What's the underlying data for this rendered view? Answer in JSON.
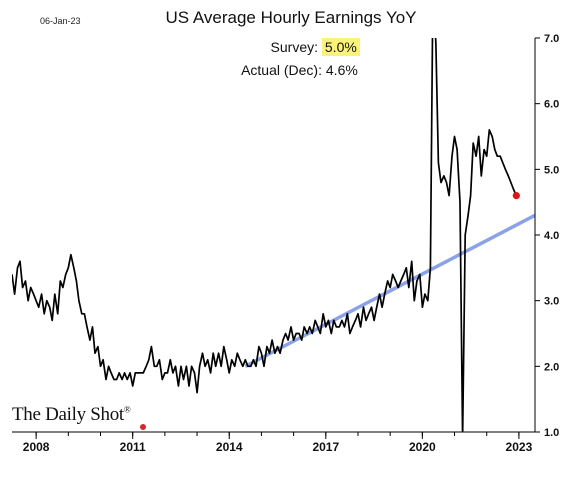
{
  "date_stamp": "06-Jan-23",
  "brand": {
    "name": "The Daily Shot",
    "mark": "®"
  },
  "annotation": {
    "survey_label": "Survey:",
    "survey_value": "5.0%",
    "actual_label": "Actual (Dec):",
    "actual_value": "4.6%"
  },
  "colors": {
    "line": "#000000",
    "trend": "#8aa2e6",
    "last_point": "#e01515",
    "highlight": "#fbf27a",
    "brand_dot": "#d12a2a"
  },
  "chart_data": {
    "type": "line",
    "title": "US Average Hourly Earnings YoY",
    "xlabel": "",
    "ylabel": "",
    "xlim": [
      2007.25,
      2023.5
    ],
    "ylim": [
      1.0,
      7.0
    ],
    "x_ticks": [
      "2008",
      "2011",
      "2014",
      "2017",
      "2020",
      "2023"
    ],
    "y_ticks": [
      "1.0",
      "2.0",
      "3.0",
      "4.0",
      "5.0",
      "6.0",
      "7.0"
    ],
    "y_axis_side": "right",
    "grid": false,
    "legend": "none",
    "series": [
      {
        "x": [
          2007.25,
          2007.33,
          2007.42,
          2007.5,
          2007.58,
          2007.67,
          2007.75,
          2007.83,
          2007.92,
          2008.0,
          2008.08,
          2008.17,
          2008.25,
          2008.33,
          2008.42,
          2008.5,
          2008.58,
          2008.67,
          2008.75,
          2008.83,
          2008.92,
          2009.0,
          2009.08,
          2009.17,
          2009.25,
          2009.33,
          2009.42,
          2009.5,
          2009.58,
          2009.67,
          2009.75,
          2009.83,
          2009.92,
          2010.0,
          2010.08,
          2010.17,
          2010.25,
          2010.33,
          2010.42,
          2010.5,
          2010.58,
          2010.67,
          2010.75,
          2010.83,
          2010.92,
          2011.0,
          2011.08,
          2011.17,
          2011.25,
          2011.33,
          2011.42,
          2011.5,
          2011.58,
          2011.67,
          2011.75,
          2011.83,
          2011.92,
          2012.0,
          2012.08,
          2012.17,
          2012.25,
          2012.33,
          2012.42,
          2012.5,
          2012.58,
          2012.67,
          2012.75,
          2012.83,
          2012.92,
          2013.0,
          2013.08,
          2013.17,
          2013.25,
          2013.33,
          2013.42,
          2013.5,
          2013.58,
          2013.67,
          2013.75,
          2013.83,
          2013.92,
          2014.0,
          2014.08,
          2014.17,
          2014.25,
          2014.33,
          2014.42,
          2014.5,
          2014.58,
          2014.67,
          2014.75,
          2014.83,
          2014.92,
          2015.0,
          2015.08,
          2015.17,
          2015.25,
          2015.33,
          2015.42,
          2015.5,
          2015.58,
          2015.67,
          2015.75,
          2015.83,
          2015.92,
          2016.0,
          2016.08,
          2016.17,
          2016.25,
          2016.33,
          2016.42,
          2016.5,
          2016.58,
          2016.67,
          2016.75,
          2016.83,
          2016.92,
          2017.0,
          2017.08,
          2017.17,
          2017.25,
          2017.33,
          2017.42,
          2017.5,
          2017.58,
          2017.67,
          2017.75,
          2017.83,
          2017.92,
          2018.0,
          2018.08,
          2018.17,
          2018.25,
          2018.33,
          2018.42,
          2018.5,
          2018.58,
          2018.67,
          2018.75,
          2018.83,
          2018.92,
          2019.0,
          2019.08,
          2019.17,
          2019.25,
          2019.33,
          2019.42,
          2019.5,
          2019.58,
          2019.67,
          2019.75,
          2019.83,
          2019.92,
          2020.0,
          2020.08,
          2020.17,
          2020.25,
          2020.33,
          2020.42,
          2020.5,
          2020.58,
          2020.67,
          2020.75,
          2020.83,
          2020.92,
          2021.0,
          2021.08,
          2021.17,
          2021.25,
          2021.33,
          2021.42,
          2021.5,
          2021.58,
          2021.67,
          2021.75,
          2021.83,
          2021.92,
          2022.0,
          2022.08,
          2022.17,
          2022.25,
          2022.33,
          2022.42,
          2022.5,
          2022.58,
          2022.67,
          2022.75,
          2022.83,
          2022.92
        ],
        "values": [
          3.4,
          3.1,
          3.5,
          3.6,
          3.2,
          3.3,
          3.0,
          3.2,
          3.1,
          3.0,
          2.9,
          3.1,
          2.8,
          3.0,
          2.9,
          2.7,
          3.1,
          2.8,
          3.3,
          3.2,
          3.4,
          3.5,
          3.7,
          3.5,
          3.3,
          3.0,
          2.8,
          2.8,
          2.6,
          2.4,
          2.6,
          2.2,
          2.3,
          2.0,
          2.1,
          1.8,
          2.0,
          1.9,
          1.8,
          1.8,
          1.9,
          1.8,
          1.9,
          1.8,
          1.9,
          1.7,
          1.9,
          1.9,
          1.9,
          1.9,
          2.0,
          2.1,
          2.3,
          2.0,
          2.0,
          2.1,
          1.8,
          1.9,
          1.9,
          2.1,
          1.9,
          2.0,
          1.7,
          2.0,
          1.8,
          2.0,
          1.7,
          2.0,
          1.9,
          1.6,
          2.0,
          2.2,
          2.0,
          2.1,
          1.9,
          2.2,
          2.0,
          2.2,
          2.0,
          2.3,
          2.1,
          1.9,
          2.1,
          2.0,
          2.2,
          2.1,
          2.0,
          2.1,
          2.0,
          2.0,
          2.1,
          2.0,
          2.3,
          2.2,
          2.0,
          2.3,
          2.2,
          2.4,
          2.2,
          2.3,
          2.2,
          2.4,
          2.5,
          2.4,
          2.6,
          2.4,
          2.5,
          2.5,
          2.4,
          2.6,
          2.5,
          2.6,
          2.5,
          2.7,
          2.6,
          2.5,
          2.8,
          2.6,
          2.7,
          2.5,
          2.7,
          2.6,
          2.6,
          2.7,
          2.6,
          2.8,
          2.5,
          2.6,
          2.7,
          2.8,
          2.6,
          2.9,
          2.7,
          2.8,
          2.9,
          2.7,
          2.9,
          3.1,
          2.9,
          3.1,
          3.3,
          3.2,
          3.4,
          3.3,
          3.2,
          3.3,
          3.4,
          3.5,
          3.2,
          3.6,
          3.0,
          3.3,
          3.4,
          2.9,
          3.1,
          3.0,
          3.5,
          7.9,
          6.9,
          5.1,
          4.8,
          4.9,
          4.8,
          4.6,
          5.2,
          5.5,
          5.3,
          4.5,
          0.9,
          4.0,
          4.3,
          4.6,
          5.4,
          5.2,
          5.5,
          4.9,
          5.3,
          5.2,
          5.6,
          5.5,
          5.3,
          5.2,
          5.2,
          5.1,
          5.0,
          4.9,
          4.8,
          4.7,
          4.6
        ]
      }
    ],
    "trend": {
      "x": [
        2014.5,
        2023.5
      ],
      "y": [
        2.0,
        4.3
      ]
    },
    "last_point": {
      "x": 2022.92,
      "y": 4.6
    }
  }
}
